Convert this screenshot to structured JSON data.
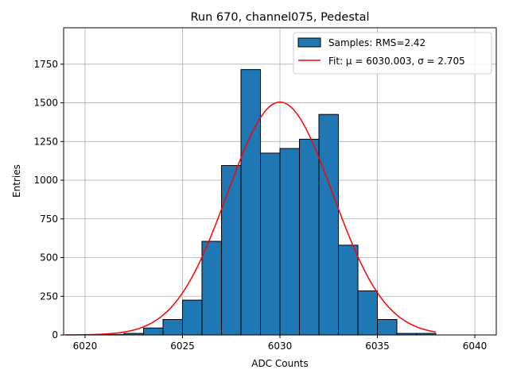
{
  "chart_data": {
    "type": "bar",
    "title": "Run 670, channel075, Pedestal",
    "xlabel": "ADC Counts",
    "ylabel": "Entries",
    "xlim": [
      6018.9,
      6041.1
    ],
    "ylim": [
      0,
      1985
    ],
    "x_ticks": [
      6020,
      6025,
      6030,
      6035,
      6040
    ],
    "y_ticks": [
      0,
      250,
      500,
      750,
      1000,
      1250,
      1500,
      1750
    ],
    "grid": true,
    "legend_placement": "upper right",
    "histogram": {
      "name": "Samples: RMS=2.42",
      "color": "#1f77b4",
      "bin_width": 1,
      "bins": [
        {
          "x": 6021,
          "count": 3
        },
        {
          "x": 6022,
          "count": 10
        },
        {
          "x": 6023,
          "count": 45
        },
        {
          "x": 6024,
          "count": 100
        },
        {
          "x": 6025,
          "count": 225
        },
        {
          "x": 6026,
          "count": 605
        },
        {
          "x": 6027,
          "count": 1095
        },
        {
          "x": 6028,
          "count": 1715
        },
        {
          "x": 6029,
          "count": 1175
        },
        {
          "x": 6030,
          "count": 1205
        },
        {
          "x": 6031,
          "count": 1265
        },
        {
          "x": 6032,
          "count": 1425
        },
        {
          "x": 6033,
          "count": 580
        },
        {
          "x": 6034,
          "count": 285
        },
        {
          "x": 6035,
          "count": 100
        },
        {
          "x": 6036,
          "count": 10
        },
        {
          "x": 6037,
          "count": 10
        }
      ]
    },
    "fit": {
      "name": "Fit: μ = 6030.003, σ = 2.705",
      "color": "#ff0000",
      "mu": 6030.003,
      "sigma": 2.705,
      "amplitude": 1505,
      "x_range": [
        6019,
        6038
      ]
    }
  }
}
